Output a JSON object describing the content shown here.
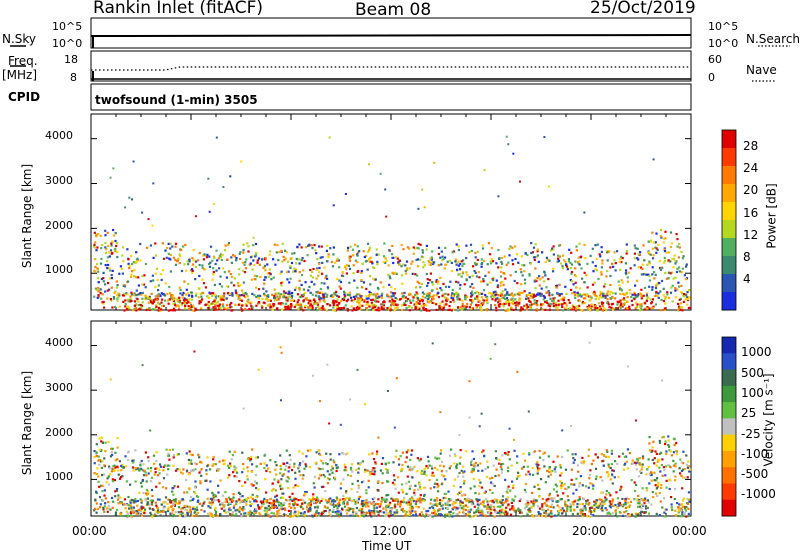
{
  "header": {
    "station": "Rankin Inlet (fitACF)",
    "beam": "Beam 08",
    "date": "25/Oct/2019"
  },
  "strip_sky": {
    "left_label": "N.Sky",
    "right_label": "N.Search",
    "left_ticks": [
      "10^5",
      "10^0"
    ],
    "right_ticks": [
      "10^5",
      "10^0"
    ]
  },
  "strip_freq": {
    "left_label_1": "Freq.",
    "left_label_2": "[MHz]",
    "right_label": "Nave",
    "left_ticks": [
      "18",
      "8"
    ],
    "right_ticks": [
      "60",
      "0"
    ]
  },
  "cpid": {
    "label": "CPID",
    "mode": "twofsound (1-min) 3505"
  },
  "chart_data": [
    {
      "type": "heatmap",
      "panel": "power",
      "ylabel": "Slant Range [km]",
      "yticks": [
        1000,
        2000,
        3000,
        4000
      ],
      "ylim": [
        180,
        4550
      ],
      "colorbar": {
        "label": "Power [dB]",
        "ticks": [
          "28",
          "24",
          "20",
          "16",
          "12",
          "8",
          "4"
        ],
        "colors": [
          "#e00000",
          "#ff3a00",
          "#ff7a00",
          "#ffa800",
          "#ffd400",
          "#b4d820",
          "#50b060",
          "#3a8a70",
          "#2a55b0",
          "#1a2ee0"
        ]
      }
    },
    {
      "type": "heatmap",
      "panel": "velocity",
      "ylabel": "Slant Range [km]",
      "yticks": [
        1000,
        2000,
        3000,
        4000
      ],
      "ylim": [
        180,
        4550
      ],
      "colorbar": {
        "label": "Velocity [m s⁻¹]",
        "ticks": [
          "1000",
          "500",
          "100",
          "25",
          "-25",
          "-100",
          "-500",
          "-1000"
        ],
        "colors": [
          "#1428b0",
          "#2850c8",
          "#3a6a50",
          "#3c9a3c",
          "#60c040",
          "#c0c0c0",
          "#ffd000",
          "#ffa000",
          "#ff7000",
          "#ff3a00",
          "#e00000"
        ]
      }
    }
  ],
  "xaxis": {
    "label": "Time UT",
    "ticks": [
      "00:00",
      "04:00",
      "08:00",
      "12:00",
      "16:00",
      "20:00",
      "00:00"
    ]
  }
}
